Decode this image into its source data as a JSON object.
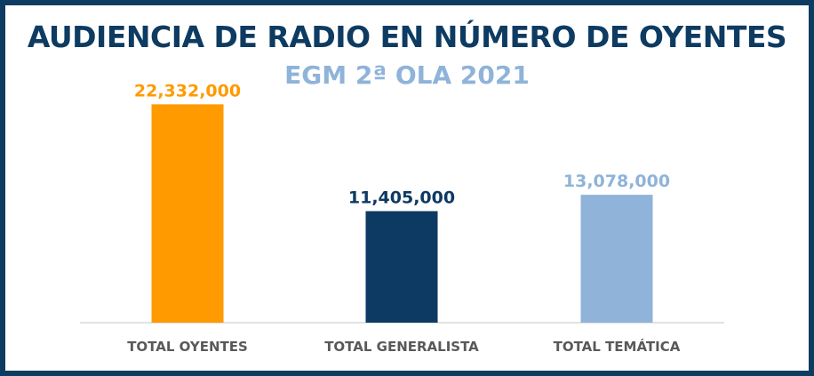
{
  "chart_data": {
    "type": "bar",
    "title": "AUDIENCIA DE RADIO EN NÚMERO DE OYENTES",
    "subtitle": "EGM 2ª OLA 2021",
    "categories": [
      "TOTAL OYENTES",
      "TOTAL GENERALISTA",
      "TOTAL TEMÁTICA"
    ],
    "values": [
      22332000,
      11405000,
      13078000
    ],
    "value_labels": [
      "22,332,000",
      "11,405,000",
      "13,078,000"
    ],
    "colors": [
      "#ff9a00",
      "#0d3a63",
      "#8fb3d9"
    ],
    "ylim": [
      0,
      25000000
    ],
    "xlabel": "",
    "ylabel": "",
    "grid": false,
    "legend": "none"
  },
  "colors": {
    "frame": "#0e3b61",
    "title": "#0e3b61",
    "subtitle": "#8fb3d9",
    "axis": "#d9d9d9",
    "category_text": "#595959"
  }
}
